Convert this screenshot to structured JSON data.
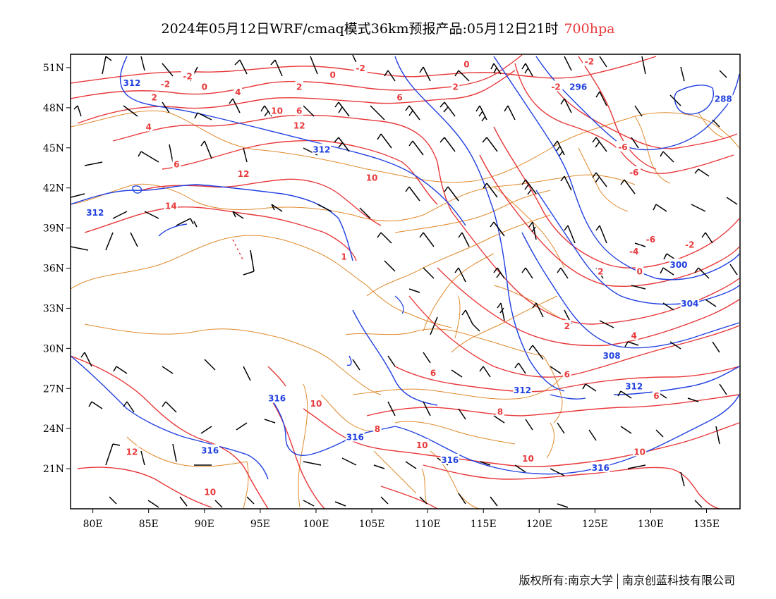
{
  "header": {
    "title": "2024年05月12日WRF/cmaq模式36km预报产品:05月12日21时",
    "level": "700hpa"
  },
  "footer": {
    "copyright": "版权所有:南京大学",
    "company": "南京创蓝科技有限公司"
  },
  "colors": {
    "temperature": "#e8383a",
    "height": "#2040e0",
    "boundary": "#e08a2c",
    "wind": "#000000",
    "level_text": "#e8383a"
  },
  "map": {
    "projection": "lat-lon",
    "lon_range": [
      78,
      138
    ],
    "lat_range": [
      18,
      52
    ],
    "lon_ticks": [
      "80E",
      "85E",
      "90E",
      "95E",
      "100E",
      "105E",
      "110E",
      "115E",
      "120E",
      "125E",
      "130E",
      "135E"
    ],
    "lat_ticks": [
      "51N",
      "48N",
      "45N",
      "42N",
      "39N",
      "36N",
      "33N",
      "30N",
      "27N",
      "24N",
      "21N"
    ],
    "temperature_labels": [
      {
        "text": "-2",
        "lon": 88.5,
        "lat": 50.4
      },
      {
        "text": "-2",
        "lon": 86.5,
        "lat": 49.8
      },
      {
        "text": "-2",
        "lon": 104,
        "lat": 51
      },
      {
        "text": "0",
        "lon": 90,
        "lat": 49.6
      },
      {
        "text": "0",
        "lon": 101.5,
        "lat": 50.5
      },
      {
        "text": "0",
        "lon": 113.5,
        "lat": 51.3
      },
      {
        "text": "2",
        "lon": 85.5,
        "lat": 48.8
      },
      {
        "text": "2",
        "lon": 98.5,
        "lat": 49.6
      },
      {
        "text": "2",
        "lon": 112.5,
        "lat": 49.6
      },
      {
        "text": "-2",
        "lon": 121.5,
        "lat": 49.6
      },
      {
        "text": "-2",
        "lon": 124.5,
        "lat": 51.5
      },
      {
        "text": "4",
        "lon": 93,
        "lat": 49.2
      },
      {
        "text": "4",
        "lon": 85,
        "lat": 46.6
      },
      {
        "text": "6",
        "lon": 107.5,
        "lat": 48.8
      },
      {
        "text": "6",
        "lon": 98.5,
        "lat": 47.8
      },
      {
        "text": "6",
        "lon": 87.5,
        "lat": 43.8
      },
      {
        "text": "10",
        "lon": 96.5,
        "lat": 47.8
      },
      {
        "text": "12",
        "lon": 98.5,
        "lat": 46.7
      },
      {
        "text": "12",
        "lon": 93.5,
        "lat": 43.1
      },
      {
        "text": "10",
        "lon": 105,
        "lat": 42.8
      },
      {
        "text": "14",
        "lon": 87,
        "lat": 40.7
      },
      {
        "text": "-6",
        "lon": 127.5,
        "lat": 45.1
      },
      {
        "text": "-6",
        "lon": 128.5,
        "lat": 43.2
      },
      {
        "text": "-6",
        "lon": 130,
        "lat": 38.2
      },
      {
        "text": "-4",
        "lon": 128.5,
        "lat": 37.3
      },
      {
        "text": "-2",
        "lon": 133.5,
        "lat": 37.8
      },
      {
        "text": "0",
        "lon": 129,
        "lat": 35.8
      },
      {
        "text": "2",
        "lon": 125.5,
        "lat": 35.8
      },
      {
        "text": "2",
        "lon": 122.5,
        "lat": 31.7
      },
      {
        "text": "4",
        "lon": 128.5,
        "lat": 31
      },
      {
        "text": "6",
        "lon": 110.5,
        "lat": 28.2
      },
      {
        "text": "6",
        "lon": 122.5,
        "lat": 28.1
      },
      {
        "text": "6",
        "lon": 130.5,
        "lat": 26.5
      },
      {
        "text": "10",
        "lon": 100,
        "lat": 25.9
      },
      {
        "text": "8",
        "lon": 105.5,
        "lat": 24
      },
      {
        "text": "8",
        "lon": 116.5,
        "lat": 25.3
      },
      {
        "text": "10",
        "lon": 109.5,
        "lat": 22.8
      },
      {
        "text": "10",
        "lon": 119,
        "lat": 21.8
      },
      {
        "text": "10",
        "lon": 129,
        "lat": 22.3
      },
      {
        "text": "12",
        "lon": 83.5,
        "lat": 22.3
      },
      {
        "text": "10",
        "lon": 90.5,
        "lat": 19.3
      },
      {
        "text": "1",
        "lon": 102.5,
        "lat": 36.9
      }
    ],
    "height_labels": [
      {
        "text": "312",
        "lon": 83.5,
        "lat": 49.9
      },
      {
        "text": "312",
        "lon": 100.5,
        "lat": 44.9
      },
      {
        "text": "312",
        "lon": 80.2,
        "lat": 40.2
      },
      {
        "text": "296",
        "lon": 123.5,
        "lat": 49.6
      },
      {
        "text": "288",
        "lon": 136.5,
        "lat": 48.7
      },
      {
        "text": "300",
        "lon": 132.5,
        "lat": 36.3
      },
      {
        "text": "304",
        "lon": 133.5,
        "lat": 33.4
      },
      {
        "text": "308",
        "lon": 126.5,
        "lat": 29.5
      },
      {
        "text": "312",
        "lon": 118.5,
        "lat": 26.9
      },
      {
        "text": "312",
        "lon": 128.5,
        "lat": 27.2
      },
      {
        "text": "316",
        "lon": 96.5,
        "lat": 26.3
      },
      {
        "text": "316",
        "lon": 90.5,
        "lat": 22.4
      },
      {
        "text": "316",
        "lon": 103.5,
        "lat": 23.4
      },
      {
        "text": "316",
        "lon": 112,
        "lat": 21.7
      },
      {
        "text": "316",
        "lon": 125.5,
        "lat": 21.1
      }
    ]
  }
}
